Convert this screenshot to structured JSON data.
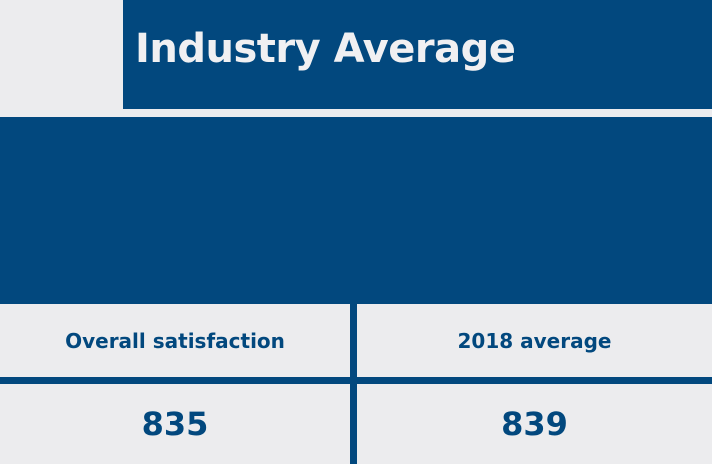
{
  "header": {
    "title": "Industry Average"
  },
  "table": {
    "columns": [
      "Overall satisfaction",
      "2018 average"
    ],
    "values": [
      "835",
      "839"
    ]
  },
  "colors": {
    "brand": "#02487e",
    "background": "#ececee"
  }
}
